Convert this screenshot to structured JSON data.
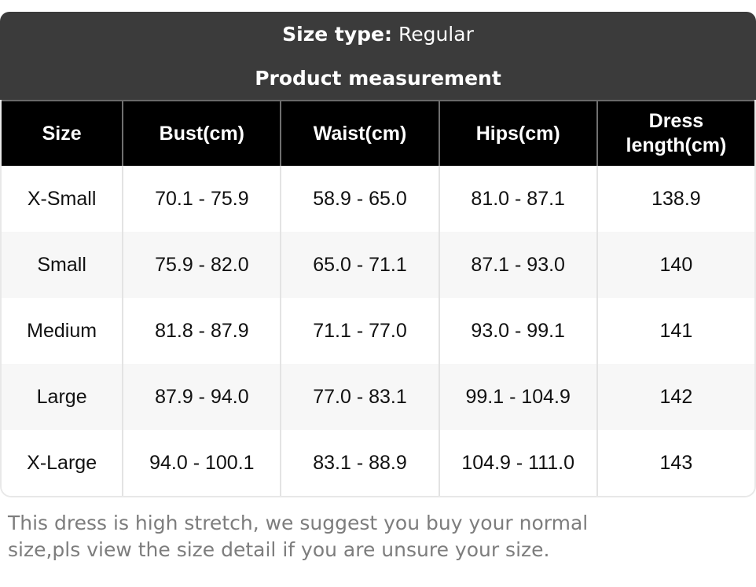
{
  "header": {
    "size_type_label": "Size type:",
    "size_type_value": "Regular",
    "subtitle": "Product measurement"
  },
  "table": {
    "columns": [
      "Size",
      "Bust(cm)",
      "Waist(cm)",
      "Hips(cm)",
      "Dress length(cm)"
    ],
    "rows": [
      {
        "size": "X-Small",
        "bust": "70.1 - 75.9",
        "waist": "58.9 - 65.0",
        "hips": "81.0 - 87.1",
        "dress_length": "138.9"
      },
      {
        "size": "Small",
        "bust": "75.9 - 82.0",
        "waist": "65.0 - 71.1",
        "hips": "87.1 - 93.0",
        "dress_length": "140"
      },
      {
        "size": "Medium",
        "bust": "81.8 - 87.9",
        "waist": "71.1 - 77.0",
        "hips": "93.0 - 99.1",
        "dress_length": "141"
      },
      {
        "size": "Large",
        "bust": "87.9 - 94.0",
        "waist": "77.0 - 83.1",
        "hips": "99.1 - 104.9",
        "dress_length": "142"
      },
      {
        "size": "X-Large",
        "bust": "94.0 - 100.1",
        "waist": "83.1 - 88.9",
        "hips": "104.9 - 111.0",
        "dress_length": "143"
      }
    ]
  },
  "note": {
    "line1": "This dress is high stretch, we suggest you buy your normal",
    "line2": "size,pls view the size detail if you are unsure your size."
  },
  "colors": {
    "header_band_bg": "#3b3b3b",
    "table_header_bg": "#000000",
    "table_header_text": "#ffffff",
    "alt_row_bg": "#f7f7f7",
    "divider_on_black": "#6f6f6f",
    "divider_on_white": "#e3e3e3",
    "note_text": "#7d7d7d"
  }
}
